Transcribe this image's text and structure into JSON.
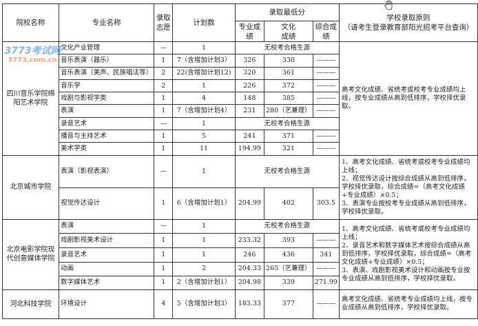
{
  "header": {
    "school": "院校名称",
    "major": "专业名称",
    "choice": "录取志愿",
    "plan": "计划数",
    "min_score": "录取最低分",
    "pro": "专业成绩",
    "culture": "文化成绩",
    "total": "综合成绩",
    "rule_title": "学校录取原则",
    "rule_sub": "（请考生登录教育部阳光招考平台查询）"
  },
  "no_source": "无校考合格生源",
  "dash": "———",
  "groups": [
    {
      "school": "四川音乐学院绵阳艺术学院",
      "rule": "高考文化成绩、省统考或校考专业成绩均上线，按专业成绩从高到低排序，学校择优录取。",
      "rows": [
        {
          "major": "文化产业管理",
          "choice": "—",
          "plan": "1",
          "pro": "",
          "culture": "",
          "total": "",
          "no_source": true
        },
        {
          "major": "音乐表演（器乐）",
          "choice": "1",
          "plan": "7（含增加计划3）",
          "pro": "326",
          "culture": "330",
          "total": "———"
        },
        {
          "major": "音乐表演（美声、民族唱法等）",
          "choice": "2",
          "plan": "22(含增加计划12)",
          "pro": "320",
          "culture": "361",
          "total": "———"
        },
        {
          "major": "音乐学",
          "choice": "2",
          "plan": "1",
          "pro": "226",
          "culture": "372",
          "total": "———"
        },
        {
          "major": "戏剧与影视学类",
          "choice": "1",
          "plan": "4",
          "pro": "148",
          "culture": "385",
          "total": "———"
        },
        {
          "major": "表演",
          "choice": "1",
          "plan": "7（含增加计划4）",
          "pro": "231",
          "culture": "280（艺兼理）",
          "total": "———"
        },
        {
          "major": "录音艺术",
          "choice": "—",
          "plan": "1",
          "pro": "",
          "culture": "",
          "total": "",
          "no_source": true
        },
        {
          "major": "播音与主持艺术",
          "choice": "1",
          "plan": "5",
          "pro": "241",
          "culture": "371",
          "total": "———"
        },
        {
          "major": "美术学类",
          "choice": "1",
          "plan": "11",
          "pro": "194.99",
          "culture": "321",
          "total": "———"
        }
      ]
    },
    {
      "school": "北京城市学院",
      "rule": "1、高考文化成绩、省统考或校考专业成绩均上线；\n2、视觉传达设计按综合成绩从高到低排序，学校择优录取，综合成绩=（高考文化成绩+专业成绩）×0.5；\n3、表演专业按校考专业成绩从高到低排序，学校择优录取。",
      "rows": [
        {
          "major": "表演（影视表演）",
          "choice": "—",
          "plan": "1",
          "pro": "",
          "culture": "",
          "total": "",
          "no_source": true
        },
        {
          "major": "视觉传达设计",
          "choice": "1",
          "plan": "6（含增加计划1）",
          "pro": "204.99",
          "culture": "402",
          "total": "303.5"
        }
      ]
    },
    {
      "school": "北京电影学院现代创意媒体学院",
      "rule": "1、高考文化成绩、省统考或校考专业成绩均上线；\n2、录音艺术和数字媒体艺术按综合成绩从高到低排序，学校择优录取，综合成绩=（高考文化成绩+专业成绩）×0.5；\n3、表演、戏剧影视美术设计和动画按专业按专业成绩从高到低排序，学校择优录取。",
      "rows": [
        {
          "major": "表演",
          "choice": "—",
          "plan": "1",
          "pro": "",
          "culture": "",
          "total": "",
          "no_source": true
        },
        {
          "major": "戏剧影视美术设计",
          "choice": "1",
          "plan": "1",
          "pro": "233.32",
          "culture": "393",
          "total": "———"
        },
        {
          "major": "录音艺术",
          "choice": "1",
          "plan": "1",
          "pro": "246",
          "culture": "436",
          "total": "341"
        },
        {
          "major": "动画",
          "choice": "1",
          "plan": "2",
          "pro": "204.33",
          "culture": "265（艺兼理）",
          "total": "———"
        },
        {
          "major": "数字媒体艺术",
          "choice": "1",
          "plan": "2（含增加计划1）",
          "pro": "204.98",
          "culture": "339",
          "total": "271.99"
        }
      ]
    },
    {
      "school": "河北科技学院",
      "rule": "高考文化成绩、省统考专业成绩均上线，按专业成绩从高到低排序，学校择优录取。",
      "rows": [
        {
          "major": "环境设计",
          "choice": "4",
          "plan": "5（含增加计划3）",
          "pro": "183.33",
          "culture": "377",
          "total": "———"
        }
      ]
    }
  ],
  "watermark": {
    "logo": "3773考试网",
    "url": "3773.com.cn"
  },
  "icons": {
    "cursor": "hand-cursor-icon"
  }
}
